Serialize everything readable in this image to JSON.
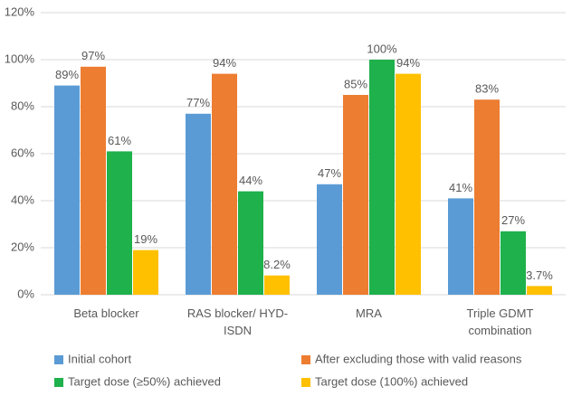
{
  "chart_data": {
    "type": "bar",
    "categories": [
      "Beta blocker",
      "RAS blocker/ HYD-ISDN",
      "MRA",
      "Triple GDMT combination"
    ],
    "series": [
      {
        "name": "Initial cohort",
        "color": "#5b9bd5",
        "values": [
          89,
          77,
          47,
          41
        ],
        "value_labels": [
          "89%",
          "77%",
          "47%",
          "41%"
        ]
      },
      {
        "name": "After excluding those with valid reasons",
        "color": "#ed7d31",
        "values": [
          97,
          94,
          85,
          83
        ],
        "value_labels": [
          "97%",
          "94%",
          "85%",
          "83%"
        ]
      },
      {
        "name": "Target dose (≥50%) achieved",
        "color": "#1fb14b",
        "values": [
          61,
          44,
          100,
          27
        ],
        "value_labels": [
          "61%",
          "44%",
          "100%",
          "27%"
        ]
      },
      {
        "name": "Target dose (100%) achieved",
        "color": "#ffc000",
        "values": [
          19,
          8.2,
          94,
          3.7
        ],
        "value_labels": [
          "19%",
          "8.2%",
          "94%",
          "3.7%"
        ]
      }
    ],
    "ylim": [
      0,
      120
    ],
    "yticks": [
      {
        "value": 0,
        "label": "0%"
      },
      {
        "value": 20,
        "label": "20%"
      },
      {
        "value": 40,
        "label": "40%"
      },
      {
        "value": 60,
        "label": "60%"
      },
      {
        "value": 80,
        "label": "80%"
      },
      {
        "value": 100,
        "label": "100%"
      },
      {
        "value": 120,
        "label": "120%"
      }
    ],
    "grid": true,
    "legend": "bottom"
  }
}
